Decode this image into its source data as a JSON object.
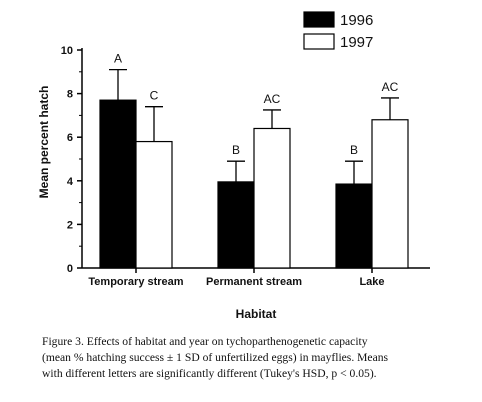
{
  "chart_data": {
    "type": "bar",
    "categories": [
      "Temporary stream",
      "Permanent stream",
      "Lake"
    ],
    "series": [
      {
        "name": "1996",
        "color": "#000000",
        "values": [
          7.7,
          3.95,
          3.85
        ],
        "sd": [
          1.4,
          0.95,
          1.05
        ],
        "letters": [
          "A",
          "B",
          "B"
        ]
      },
      {
        "name": "1997",
        "color": "#ffffff",
        "values": [
          5.8,
          6.4,
          6.8
        ],
        "sd": [
          1.6,
          0.85,
          1.0
        ],
        "letters": [
          "C",
          "AC",
          "AC"
        ]
      }
    ],
    "xlabel": "Habitat",
    "ylabel": "Mean percent hatch",
    "ylim": [
      0,
      10
    ],
    "yticks": [
      "0",
      "2",
      "4",
      "6",
      "8",
      "10"
    ],
    "legend_position": "top-right",
    "grid": false
  },
  "caption": {
    "line1": "Figure 3. Effects of habitat and year on tychoparthenogenetic capacity",
    "line2": "(mean % hatching success ± 1 SD of unfertilized eggs) in mayflies. Means",
    "line3": "with different letters are significantly different (Tukey's HSD, p < 0.05)."
  }
}
